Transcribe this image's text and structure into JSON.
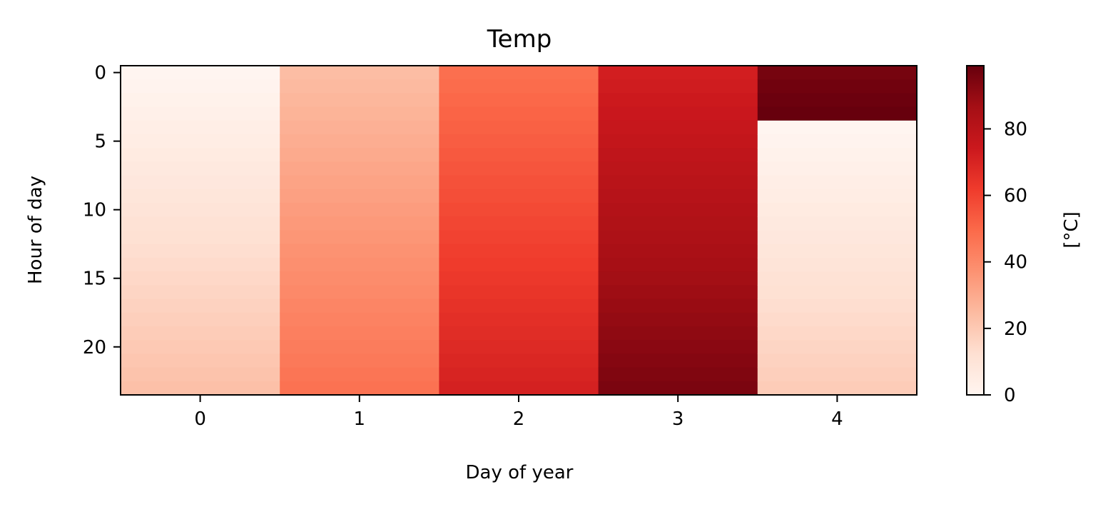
{
  "chart_data": {
    "type": "heatmap",
    "title": "Temp",
    "xlabel": "Day of year",
    "ylabel": "Hour of day",
    "x_ticks": [
      0,
      1,
      2,
      3,
      4
    ],
    "y_ticks": [
      0,
      5,
      10,
      15,
      20
    ],
    "x_range": [
      -0.5,
      4.5
    ],
    "y_range": [
      -0.5,
      23.5
    ],
    "y_inverted": true,
    "colormap": "Reds",
    "colormap_stops": [
      "#fff5f0",
      "#fee0d2",
      "#fcbba1",
      "#fc9272",
      "#fb6a4a",
      "#ef3b2c",
      "#cb181d",
      "#a50f15",
      "#67000d"
    ],
    "colorbar": {
      "label": "[°C]",
      "range": [
        0,
        99
      ],
      "ticks": [
        0,
        20,
        40,
        60,
        80
      ]
    },
    "series": [
      {
        "x": 0,
        "hour_start": 0,
        "hour_end": 23,
        "value_start": 0,
        "value_end": 23
      },
      {
        "x": 1,
        "hour_start": 0,
        "hour_end": 23,
        "value_start": 24,
        "value_end": 47
      },
      {
        "x": 2,
        "hour_start": 0,
        "hour_end": 23,
        "value_start": 48,
        "value_end": 71
      },
      {
        "x": 3,
        "hour_start": 0,
        "hour_end": 23,
        "value_start": 72,
        "value_end": 95
      },
      {
        "x": 4,
        "hour_start": 0,
        "hour_end": 3,
        "value_start": 96,
        "value_end": 99
      },
      {
        "x": 4,
        "hour_start": 4,
        "hour_end": 23,
        "value_start": 0,
        "value_end": 19
      }
    ]
  }
}
